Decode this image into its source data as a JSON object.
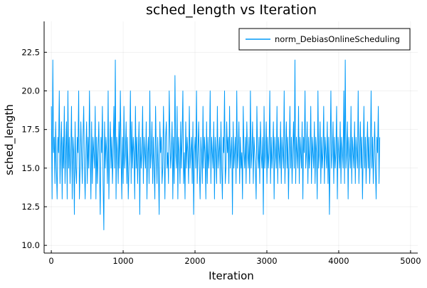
{
  "chart_data": {
    "type": "line",
    "title": "sched_length vs Iteration",
    "xlabel": "Iteration",
    "ylabel": "sched_length",
    "xlim": [
      -100,
      5100
    ],
    "ylim": [
      9.5,
      24.5
    ],
    "xticks": [
      0,
      1000,
      2000,
      3000,
      4000,
      5000
    ],
    "yticks": [
      10.0,
      12.5,
      15.0,
      17.5,
      20.0,
      22.5
    ],
    "xtick_labels": [
      "0",
      "1000",
      "2000",
      "3000",
      "4000",
      "5000"
    ],
    "ytick_labels": [
      "10.0",
      "12.5",
      "15.0",
      "17.5",
      "20.0",
      "22.5"
    ],
    "grid": true,
    "legend_position": "top-right",
    "series": [
      {
        "name": "norm_DebiasOnlineScheduling",
        "color": "#009AF9",
        "x_start": 1,
        "x_step": 10,
        "values": [
          19,
          13,
          22,
          16,
          17,
          14,
          18,
          15,
          13,
          17,
          16,
          20,
          14,
          16,
          18,
          13,
          17,
          15,
          19,
          14,
          16,
          18,
          13,
          20,
          15,
          17,
          14,
          16,
          19,
          13,
          17,
          16,
          12,
          18,
          15,
          14,
          17,
          16,
          20,
          13,
          15,
          18,
          16,
          14,
          17,
          19,
          15,
          13,
          16,
          18,
          14,
          17,
          15,
          20,
          16,
          13,
          18,
          14,
          17,
          16,
          15,
          19,
          13,
          17,
          14,
          16,
          18,
          15,
          12,
          17,
          16,
          19,
          14,
          11,
          18,
          15,
          17,
          16,
          14,
          20,
          13,
          16,
          18,
          15,
          17,
          14,
          16,
          19,
          15,
          22,
          13,
          17,
          16,
          14,
          18,
          15,
          20,
          16,
          13,
          17,
          14,
          19,
          15,
          16,
          18,
          14,
          17,
          13,
          15,
          16,
          20,
          14,
          18,
          15,
          17,
          16,
          13,
          19,
          15,
          17,
          14,
          16,
          18,
          12,
          17,
          15,
          16,
          19,
          14,
          17,
          16,
          15,
          18,
          13,
          16,
          17,
          14,
          20,
          15,
          16,
          18,
          14,
          17,
          15,
          13,
          19,
          16,
          14,
          17,
          15,
          12,
          18,
          16,
          17,
          14,
          15,
          19,
          16,
          13,
          17,
          18,
          15,
          16,
          14,
          20,
          17,
          15,
          16,
          18,
          13,
          17,
          14,
          21,
          16,
          15,
          19,
          13,
          17,
          16,
          14,
          18,
          15,
          17,
          20,
          14,
          16,
          13,
          18,
          15,
          17,
          16,
          14,
          19,
          15,
          16,
          17,
          14,
          18,
          12,
          16,
          17,
          15,
          20,
          14,
          16,
          18,
          15,
          13,
          17,
          16,
          14,
          19,
          15,
          17,
          16,
          13,
          18,
          14,
          17,
          15,
          16,
          20,
          14,
          17,
          16,
          15,
          18,
          13,
          17,
          16,
          14,
          19,
          15,
          16,
          17,
          14,
          18,
          15,
          13,
          17,
          16,
          20,
          14,
          15,
          18,
          16,
          17,
          14,
          19,
          15,
          16,
          17,
          12,
          18,
          15,
          16,
          17,
          14,
          20,
          15,
          16,
          18,
          14,
          17,
          15,
          16,
          13,
          19,
          16,
          15,
          17,
          14,
          18,
          16,
          15,
          17,
          14,
          20,
          15,
          16,
          18,
          14,
          17,
          16,
          15,
          13,
          19,
          16,
          15,
          17,
          14,
          18,
          16,
          15,
          17,
          12,
          19,
          15,
          16,
          18,
          14,
          17,
          15,
          16,
          20,
          14,
          17,
          15,
          16,
          18,
          13,
          17,
          16,
          15,
          19,
          14,
          17,
          16,
          15,
          18,
          14,
          17,
          16,
          15,
          20,
          14,
          16,
          18,
          15,
          17,
          13,
          16,
          19,
          15,
          17,
          14,
          16,
          18,
          15,
          22,
          14,
          17,
          16,
          15,
          19,
          14,
          17,
          16,
          15,
          18,
          13,
          17,
          16,
          20,
          15,
          16,
          18,
          14,
          17,
          15,
          16,
          19,
          14,
          17,
          16,
          15,
          18,
          14,
          17,
          16,
          13,
          20,
          15,
          16,
          18,
          14,
          17,
          15,
          16,
          19,
          14,
          17,
          16,
          15,
          18,
          14,
          17,
          12,
          16,
          20,
          15,
          16,
          18,
          14,
          17,
          15,
          16,
          19,
          13,
          17,
          16,
          15,
          18,
          14,
          17,
          16,
          15,
          20,
          14,
          22,
          15,
          16,
          18,
          13,
          17,
          16,
          15,
          19,
          14,
          17,
          16,
          15,
          18,
          14,
          17,
          16,
          15,
          20,
          14,
          16,
          18,
          15,
          17,
          13,
          16,
          19,
          15,
          17,
          14,
          16,
          18,
          15,
          17,
          14,
          16,
          20,
          15,
          17,
          14,
          16,
          18,
          15,
          13,
          17,
          16,
          19,
          14,
          17
        ]
      }
    ]
  }
}
